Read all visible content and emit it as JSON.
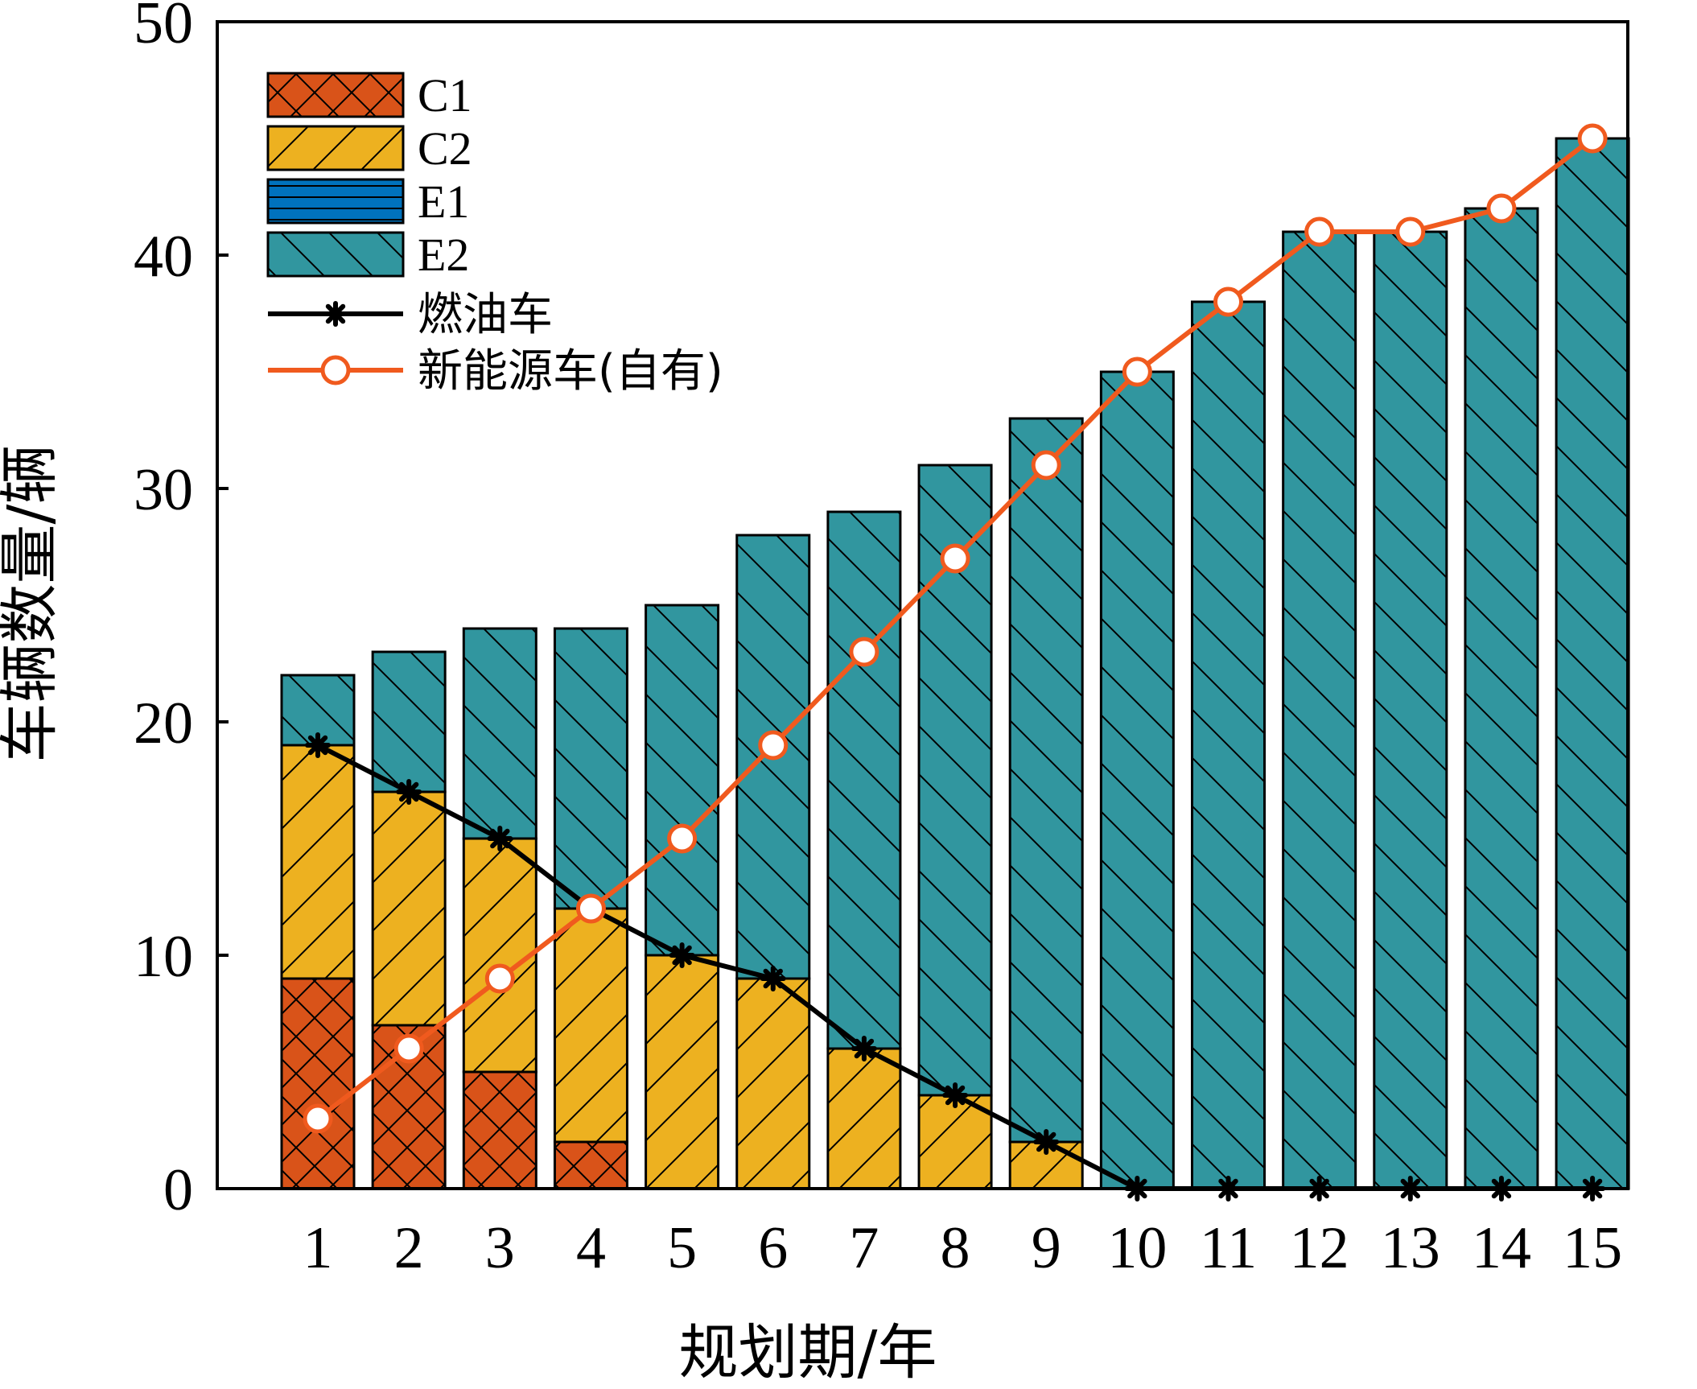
{
  "chart_data": {
    "type": "bar",
    "stacked": true,
    "xlabel": "规划期/年",
    "ylabel": "车辆数量/辆",
    "ylim": [
      0,
      50
    ],
    "yticks": [
      0,
      10,
      20,
      30,
      40,
      50
    ],
    "categories": [
      "1",
      "2",
      "3",
      "4",
      "5",
      "6",
      "7",
      "8",
      "9",
      "10",
      "11",
      "12",
      "13",
      "14",
      "15"
    ],
    "series": [
      {
        "name": "C1",
        "kind": "bar",
        "color": "#D95319",
        "pattern": "crosshatch",
        "values": [
          9,
          7,
          5,
          2,
          0,
          0,
          0,
          0,
          0,
          0,
          0,
          0,
          0,
          0,
          0
        ]
      },
      {
        "name": "C2",
        "kind": "bar",
        "color": "#EDB120",
        "pattern": "forward-diagonal",
        "values": [
          10,
          10,
          10,
          10,
          10,
          9,
          6,
          4,
          2,
          0,
          0,
          0,
          0,
          0,
          0
        ]
      },
      {
        "name": "E1",
        "kind": "bar",
        "color": "#0072BD",
        "pattern": "horizontal",
        "values": [
          0,
          0,
          0,
          0,
          0,
          0,
          0,
          0,
          0,
          0,
          0,
          0,
          0,
          0,
          0
        ]
      },
      {
        "name": "E2",
        "kind": "bar",
        "color": "#31969F",
        "pattern": "back-diagonal",
        "values": [
          3,
          6,
          9,
          12,
          15,
          19,
          23,
          27,
          31,
          35,
          38,
          41,
          41,
          42,
          45
        ]
      },
      {
        "name": "燃油车",
        "kind": "line",
        "color": "#000000",
        "marker": "asterisk",
        "values": [
          19,
          17,
          15,
          12,
          10,
          9,
          6,
          4,
          2,
          0,
          0,
          0,
          0,
          0,
          0
        ]
      },
      {
        "name": "新能源车(自有)",
        "kind": "line",
        "color": "#F05A1E",
        "marker": "circle",
        "values": [
          3,
          6,
          9,
          12,
          15,
          19,
          23,
          27,
          31,
          35,
          38,
          41,
          41,
          42,
          45
        ]
      }
    ],
    "legend": {
      "placement": "top-left"
    }
  }
}
